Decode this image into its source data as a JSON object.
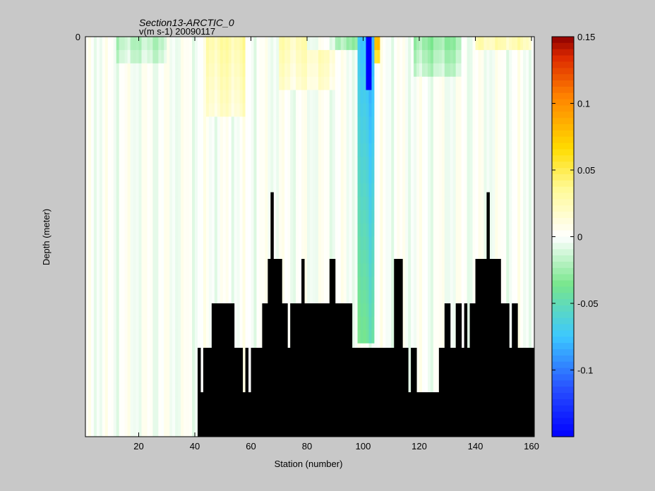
{
  "chart_data": {
    "type": "heatmap",
    "title": "Section13-ARCTIC_0",
    "subtitle": "v(m s-1)  20090117",
    "xlabel": "Station (number)",
    "ylabel": "Depth (meter)",
    "xlim": [
      1,
      161
    ],
    "ylim": [
      -4500,
      0
    ],
    "x_ticks": [
      20,
      40,
      60,
      80,
      100,
      120,
      140,
      160
    ],
    "y_ticks": [
      0,
      -500,
      -1000,
      -1500,
      -2000,
      -2500,
      -3000,
      -3500,
      -4000,
      -4500
    ],
    "colorbar": {
      "range": [
        -0.15,
        0.15
      ],
      "ticks": [
        0.15,
        0.1,
        0.05,
        0,
        -0.05,
        -0.1
      ],
      "tick_labels": [
        "0.15",
        "0.1",
        "0.05",
        "0",
        "-0.05",
        "-0.1"
      ],
      "colormap": "jet-white-center"
    },
    "bathymetry_depth": [
      [
        1,
        4500
      ],
      [
        40,
        4500
      ],
      [
        41,
        3500
      ],
      [
        42,
        4000
      ],
      [
        43,
        3500
      ],
      [
        46,
        3000
      ],
      [
        54,
        3500
      ],
      [
        57,
        4000
      ],
      [
        58,
        3500
      ],
      [
        59,
        4000
      ],
      [
        60,
        3500
      ],
      [
        64,
        3000
      ],
      [
        66,
        2500
      ],
      [
        67,
        1750
      ],
      [
        68,
        2500
      ],
      [
        71,
        3000
      ],
      [
        73,
        3500
      ],
      [
        74,
        3000
      ],
      [
        77,
        3000
      ],
      [
        78,
        2500
      ],
      [
        79,
        3000
      ],
      [
        88,
        2500
      ],
      [
        90,
        3000
      ],
      [
        96,
        3500
      ],
      [
        106,
        3500
      ],
      [
        111,
        2500
      ],
      [
        114,
        3500
      ],
      [
        116,
        4000
      ],
      [
        117,
        3500
      ],
      [
        119,
        4000
      ],
      [
        127,
        3500
      ],
      [
        129,
        3000
      ],
      [
        131,
        3500
      ],
      [
        133,
        3000
      ],
      [
        135,
        3500
      ],
      [
        136,
        3000
      ],
      [
        137,
        3500
      ],
      [
        138,
        3000
      ],
      [
        140,
        2500
      ],
      [
        144,
        1750
      ],
      [
        145,
        2500
      ],
      [
        149,
        3000
      ],
      [
        152,
        3500
      ],
      [
        153,
        3000
      ],
      [
        155,
        3500
      ],
      [
        161,
        3500
      ]
    ],
    "velocity_features": [
      {
        "x": [
          98,
          104
        ],
        "depth": [
          0,
          3500
        ],
        "v": -0.08
      },
      {
        "x": [
          101,
          103
        ],
        "depth": [
          0,
          600
        ],
        "v": -0.14
      },
      {
        "x": [
          104,
          106
        ],
        "depth": [
          0,
          300
        ],
        "v": 0.09
      },
      {
        "x": [
          44,
          58
        ],
        "depth": [
          0,
          900
        ],
        "v": 0.03
      },
      {
        "x": [
          70,
          90
        ],
        "depth": [
          0,
          600
        ],
        "v": 0.025
      },
      {
        "x": [
          80,
          98
        ],
        "depth": [
          0,
          200
        ],
        "v": -0.03
      },
      {
        "x": [
          118,
          135
        ],
        "depth": [
          0,
          400
        ],
        "v": -0.03
      },
      {
        "x": [
          140,
          160
        ],
        "depth": [
          0,
          200
        ],
        "v": 0.03
      },
      {
        "x": [
          12,
          30
        ],
        "depth": [
          0,
          300
        ],
        "v": -0.02
      }
    ]
  }
}
